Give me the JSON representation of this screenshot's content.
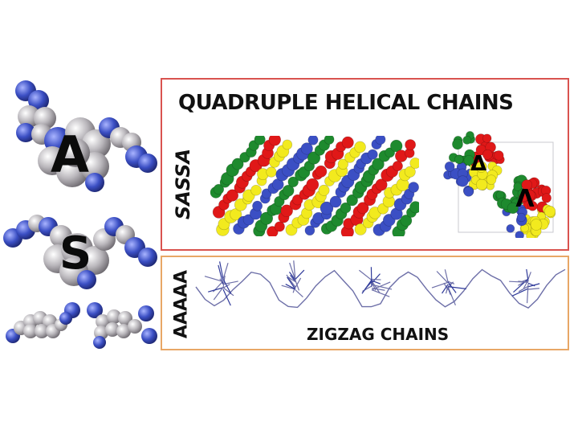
{
  "left_column": {
    "top_letter": "A",
    "middle_letter": "S"
  },
  "helical_panel": {
    "title": "QUADRUPLE HELICAL CHAINS",
    "side_label": "SASSA",
    "delta_symbol": "Δ",
    "lambda_symbol": "Λ",
    "border_color": "#d9534f"
  },
  "zigzag_panel": {
    "title": "ZIGZAG CHAINS",
    "side_label": "AAAAA",
    "border_color": "#e8a766"
  },
  "colors": {
    "blue": "#3b4fc4",
    "grey": "#b9b6bb",
    "red": "#e01818",
    "yellow": "#f2ea1e",
    "green": "#1e8a2e",
    "wire": "#6d6fa8"
  }
}
